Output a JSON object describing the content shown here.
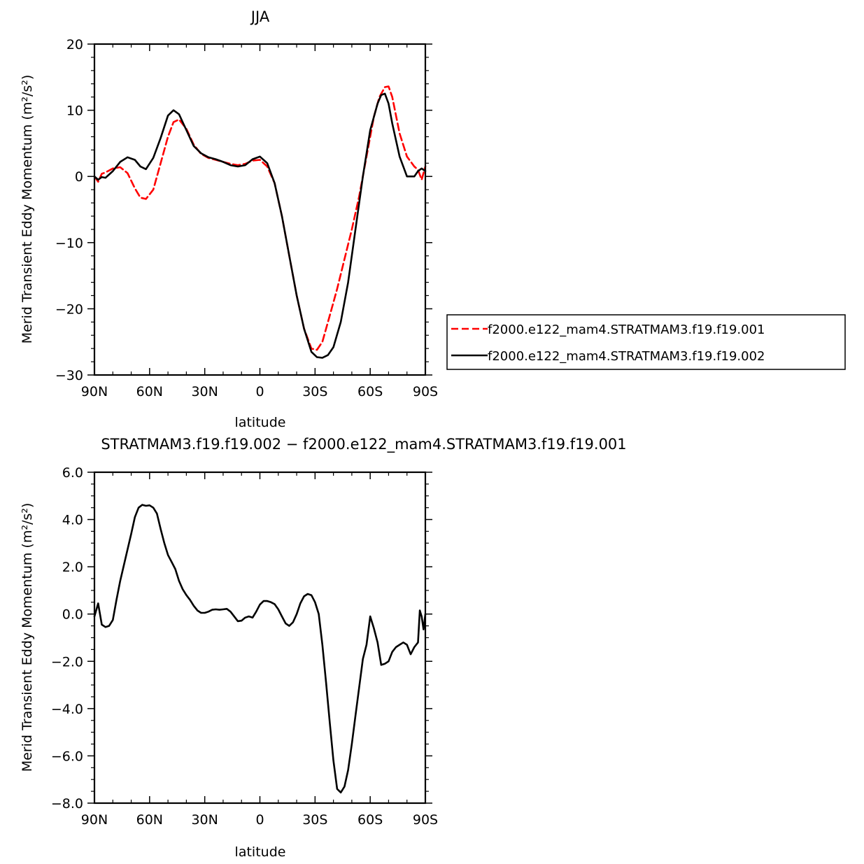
{
  "chart_data": [
    {
      "type": "line",
      "title": "JJA",
      "xlabel": "latitude",
      "ylabel": "Merid Transient Eddy Momentum (m²/s²)",
      "x_tick_values": [
        90,
        60,
        30,
        0,
        -30,
        -60,
        -90
      ],
      "x_tick_labels": [
        "90N",
        "60N",
        "30N",
        "0",
        "30S",
        "60S",
        "90S"
      ],
      "xlim": [
        90,
        -90
      ],
      "ylim": [
        -30,
        20
      ],
      "y_tick_values": [
        -30,
        -20,
        -10,
        0,
        10,
        20
      ],
      "y_tick_labels": [
        "−30",
        "−20",
        "−10",
        "0",
        "10",
        "20"
      ],
      "grid": false,
      "legend_position": "right",
      "series": [
        {
          "name": "f2000.e122_mam4.STRATMAM3.f19.f19.001",
          "color": "#ff0000",
          "style": "dashed",
          "x": [
            90,
            88,
            86,
            84,
            80,
            76,
            72,
            68,
            65,
            62,
            58,
            54,
            50,
            47,
            44,
            40,
            36,
            32,
            28,
            24,
            20,
            16,
            12,
            8,
            4,
            0,
            -4,
            -8,
            -12,
            -16,
            -20,
            -24,
            -28,
            -31,
            -34,
            -38,
            -42,
            -46,
            -50,
            -54,
            -58,
            -62,
            -65,
            -68,
            -70,
            -72,
            -76,
            -80,
            -84,
            -86,
            -88,
            -90
          ],
          "y": [
            0,
            -0.8,
            0.4,
            0.6,
            1.2,
            1.4,
            0.5,
            -1.8,
            -3.2,
            -3.4,
            -2,
            2,
            6,
            8.2,
            8.6,
            7.2,
            4.8,
            3.4,
            2.8,
            2.5,
            2.2,
            1.9,
            1.7,
            1.9,
            2.4,
            2.5,
            1.5,
            -1,
            -6,
            -12,
            -18,
            -23,
            -26,
            -26.2,
            -25,
            -21,
            -17,
            -12.5,
            -8,
            -3,
            3,
            9,
            12,
            13.5,
            13.6,
            12,
            6.5,
            3,
            1.5,
            1,
            -0.5,
            1.5
          ]
        },
        {
          "name": "f2000.e122_mam4.STRATMAM3.f19.f19.002",
          "color": "#000000",
          "style": "solid",
          "x": [
            90,
            88,
            86,
            84,
            80,
            76,
            72,
            68,
            65,
            62,
            58,
            54,
            50,
            47,
            44,
            40,
            36,
            32,
            28,
            24,
            20,
            16,
            12,
            8,
            4,
            0,
            -4,
            -8,
            -12,
            -16,
            -20,
            -24,
            -28,
            -31,
            -34,
            -37,
            -40,
            -44,
            -48,
            -52,
            -56,
            -60,
            -64,
            -66,
            -68,
            -70,
            -72,
            -76,
            -80,
            -84,
            -86,
            -88,
            -90
          ],
          "y": [
            0,
            -0.5,
            -0.1,
            -0.2,
            0.8,
            2.2,
            2.9,
            2.5,
            1.5,
            1.1,
            2.8,
            5.8,
            9.2,
            10,
            9.4,
            7,
            4.6,
            3.5,
            2.9,
            2.6,
            2.2,
            1.7,
            1.5,
            1.7,
            2.6,
            3,
            2,
            -1,
            -6,
            -12,
            -18,
            -23,
            -26.5,
            -27.3,
            -27.4,
            -27,
            -25.8,
            -22,
            -16,
            -8,
            0,
            7,
            11,
            12.3,
            12.5,
            11,
            8,
            3,
            0,
            0,
            0.8,
            1.2,
            0.8
          ]
        }
      ]
    },
    {
      "type": "line",
      "title": "STRATMAM3.f19.f19.002 − f2000.e122_mam4.STRATMAM3.f19.f19.001",
      "xlabel": "latitude",
      "ylabel": "Merid Transient Eddy Momentum (m²/s²)",
      "x_tick_values": [
        90,
        60,
        30,
        0,
        -30,
        -60,
        -90
      ],
      "x_tick_labels": [
        "90N",
        "60N",
        "30N",
        "0",
        "30S",
        "60S",
        "90S"
      ],
      "xlim": [
        90,
        -90
      ],
      "ylim": [
        -8,
        6
      ],
      "y_tick_values": [
        -8,
        -6,
        -4,
        -2,
        0,
        2,
        4,
        6
      ],
      "y_tick_labels": [
        "−8.0",
        "−6.0",
        "−4.0",
        "−2.0",
        "0.0",
        "2.0",
        "4.0",
        "6.0"
      ],
      "grid": false,
      "series": [
        {
          "color": "#000000",
          "style": "solid",
          "x": [
            90,
            88,
            86,
            84,
            82,
            80,
            78,
            76,
            73,
            70,
            68,
            66,
            64,
            62,
            60,
            58,
            56,
            54,
            52,
            50,
            48,
            46,
            44,
            42,
            40,
            38,
            36,
            34,
            32,
            30,
            28,
            26,
            24,
            22,
            20,
            18,
            16,
            14,
            12,
            10,
            8,
            6,
            4,
            2,
            0,
            -2,
            -4,
            -6,
            -8,
            -10,
            -12,
            -14,
            -16,
            -18,
            -20,
            -22,
            -24,
            -26,
            -28,
            -30,
            -32,
            -34,
            -36,
            -38,
            -40,
            -42,
            -44,
            -46,
            -48,
            -50,
            -52,
            -54,
            -56,
            -58,
            -60,
            -62,
            -64,
            -66,
            -68,
            -70,
            -72,
            -74,
            -76,
            -78,
            -80,
            -82,
            -84,
            -86,
            -87,
            -88,
            -89,
            -90
          ],
          "y": [
            -0.1,
            0.45,
            -0.45,
            -0.55,
            -0.5,
            -0.25,
            0.6,
            1.4,
            2.4,
            3.4,
            4.1,
            4.5,
            4.62,
            4.58,
            4.6,
            4.5,
            4.25,
            3.6,
            3,
            2.5,
            2.2,
            1.9,
            1.4,
            1.05,
            0.8,
            0.6,
            0.35,
            0.15,
            0.05,
            0.05,
            0.1,
            0.18,
            0.2,
            0.18,
            0.2,
            0.22,
            0.1,
            -0.1,
            -0.3,
            -0.28,
            -0.15,
            -0.1,
            -0.15,
            0.1,
            0.4,
            0.55,
            0.55,
            0.5,
            0.42,
            0.2,
            -0.1,
            -0.4,
            -0.5,
            -0.35,
            0,
            0.45,
            0.75,
            0.85,
            0.8,
            0.5,
            0,
            -1.3,
            -2.9,
            -4.6,
            -6.2,
            -7.4,
            -7.55,
            -7.3,
            -6.6,
            -5.5,
            -4.3,
            -3.1,
            -1.9,
            -1.3,
            -0.1,
            -0.6,
            -1.2,
            -2.15,
            -2.1,
            -2,
            -1.6,
            -1.4,
            -1.3,
            -1.2,
            -1.3,
            -1.7,
            -1.4,
            -1.2,
            0.15,
            -0.1,
            -0.65,
            0
          ]
        }
      ]
    }
  ]
}
